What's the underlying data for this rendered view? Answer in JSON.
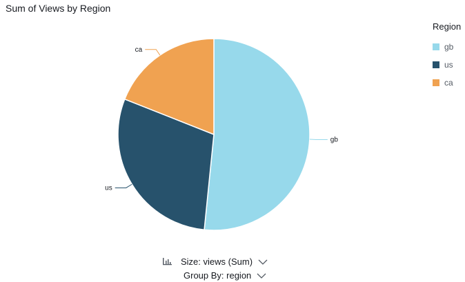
{
  "header": {
    "title": "Sum of Views by Region"
  },
  "legend": {
    "title": "Region",
    "items": [
      {
        "label": "gb",
        "color": "#97d9eb"
      },
      {
        "label": "us",
        "color": "#27526c"
      },
      {
        "label": "ca",
        "color": "#f0a251"
      }
    ]
  },
  "field_wells": {
    "size_label": "Size: views (Sum)",
    "group_label": "Group By: region",
    "size_icon": "bar-sort-icon",
    "dropdown_icon": "chevron-down-icon"
  },
  "chart_data": {
    "type": "pie",
    "title": "Sum of Views by Region",
    "legend_title": "Region",
    "legend_position": "right",
    "categories": [
      "gb",
      "us",
      "ca"
    ],
    "values": [
      51.6,
      29.4,
      19.0
    ],
    "colors": [
      "#97d9eb",
      "#27526c",
      "#f0a251"
    ]
  }
}
